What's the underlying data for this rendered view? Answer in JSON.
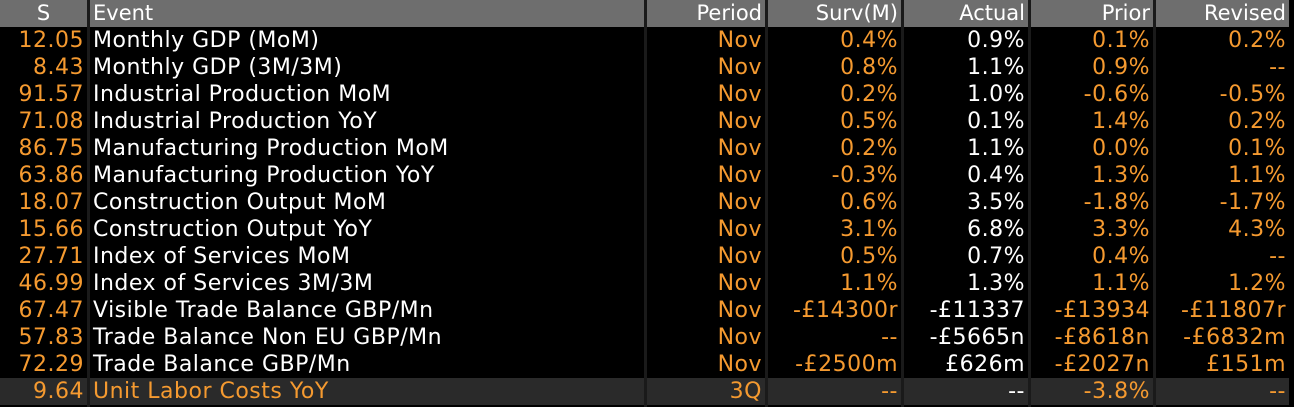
{
  "colors": {
    "header_bg": "#6e6e6e",
    "orange": "#f59a30",
    "white": "#ffffff",
    "highlight_row_bg": "#2a2a2a"
  },
  "headers": {
    "s": "S",
    "event": "Event",
    "period": "Period",
    "surv": "Surv(M)",
    "actual": "Actual",
    "prior": "Prior",
    "revised": "Revised"
  },
  "rows": [
    {
      "s": "12.05",
      "event": "Monthly GDP (MoM)",
      "period": "Nov",
      "surv": "0.4%",
      "actual": "0.9%",
      "prior": "0.1%",
      "revised": "0.2%"
    },
    {
      "s": "8.43",
      "event": "Monthly GDP (3M/3M)",
      "period": "Nov",
      "surv": "0.8%",
      "actual": "1.1%",
      "prior": "0.9%",
      "revised": "--"
    },
    {
      "s": "91.57",
      "event": "Industrial Production MoM",
      "period": "Nov",
      "surv": "0.2%",
      "actual": "1.0%",
      "prior": "-0.6%",
      "revised": "-0.5%"
    },
    {
      "s": "71.08",
      "event": "Industrial Production YoY",
      "period": "Nov",
      "surv": "0.5%",
      "actual": "0.1%",
      "prior": "1.4%",
      "revised": "0.2%"
    },
    {
      "s": "86.75",
      "event": "Manufacturing Production MoM",
      "period": "Nov",
      "surv": "0.2%",
      "actual": "1.1%",
      "prior": "0.0%",
      "revised": "0.1%"
    },
    {
      "s": "63.86",
      "event": "Manufacturing Production YoY",
      "period": "Nov",
      "surv": "-0.3%",
      "actual": "0.4%",
      "prior": "1.3%",
      "revised": "1.1%"
    },
    {
      "s": "18.07",
      "event": "Construction Output MoM",
      "period": "Nov",
      "surv": "0.6%",
      "actual": "3.5%",
      "prior": "-1.8%",
      "revised": "-1.7%"
    },
    {
      "s": "15.66",
      "event": "Construction Output YoY",
      "period": "Nov",
      "surv": "3.1%",
      "actual": "6.8%",
      "prior": "3.3%",
      "revised": "4.3%"
    },
    {
      "s": "27.71",
      "event": "Index of Services MoM",
      "period": "Nov",
      "surv": "0.5%",
      "actual": "0.7%",
      "prior": "0.4%",
      "revised": "--"
    },
    {
      "s": "46.99",
      "event": "Index of Services 3M/3M",
      "period": "Nov",
      "surv": "1.1%",
      "actual": "1.3%",
      "prior": "1.1%",
      "revised": "1.2%"
    },
    {
      "s": "67.47",
      "event": "Visible Trade Balance GBP/Mn",
      "period": "Nov",
      "surv": "-£14300r",
      "actual": "-£11337",
      "prior": "-£13934",
      "revised": "-£11807r"
    },
    {
      "s": "57.83",
      "event": "Trade Balance Non EU GBP/Mn",
      "period": "Nov",
      "surv": "--",
      "actual": "-£5665n",
      "prior": "-£8618n",
      "revised": "-£6832m"
    },
    {
      "s": "72.29",
      "event": "Trade Balance GBP/Mn",
      "period": "Nov",
      "surv": "-£2500m",
      "actual": "£626m",
      "prior": "-£2027n",
      "revised": "£151m"
    },
    {
      "s": "9.64",
      "event": "Unit Labor Costs YoY",
      "period": "3Q",
      "surv": "--",
      "actual": "--",
      "prior": "-3.8%",
      "revised": "--"
    }
  ]
}
